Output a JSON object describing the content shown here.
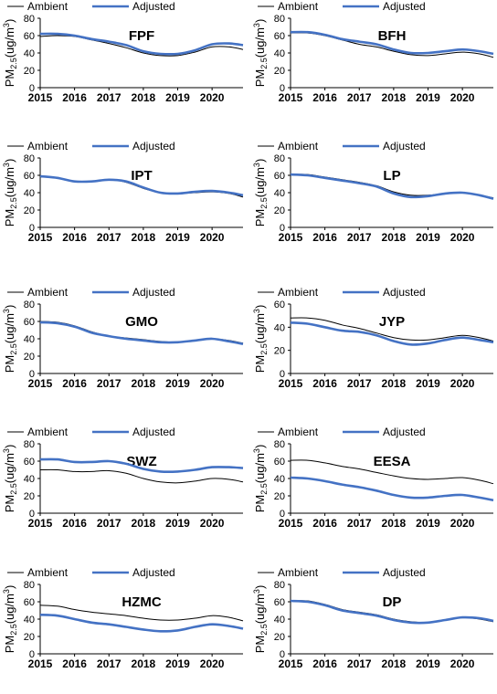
{
  "figure": {
    "legend_ambient": "Ambient",
    "legend_adjusted": "Adjusted",
    "ylabel_main": "PM",
    "ylabel_sub": "2.5",
    "ylabel_unit": "(ug/m",
    "ylabel_sup": "3",
    "ylabel_close": ")"
  },
  "colors": {
    "ambient": "#000000",
    "adjusted": "#4472c4",
    "axis": "#000000"
  },
  "chart_data": [
    {
      "type": "line",
      "title": "FPF",
      "ylim": [
        0,
        80
      ],
      "yticks": [
        0,
        20,
        40,
        60,
        80
      ],
      "xlim": [
        2015,
        2020.9
      ],
      "xticks": [
        2015,
        2016,
        2017,
        2018,
        2019,
        2020
      ],
      "x": [
        2015,
        2015.5,
        2016,
        2016.5,
        2017,
        2017.5,
        2018,
        2018.5,
        2019,
        2019.5,
        2020,
        2020.5,
        2020.9
      ],
      "series": [
        {
          "name": "Ambient",
          "values": [
            59,
            60,
            59,
            55,
            51,
            46,
            40,
            37,
            37,
            41,
            47,
            47,
            44
          ]
        },
        {
          "name": "Adjusted",
          "values": [
            62,
            62,
            60,
            56,
            53,
            49,
            42,
            39,
            39,
            43,
            50,
            51,
            49
          ]
        }
      ]
    },
    {
      "type": "line",
      "title": "BFH",
      "ylim": [
        0,
        80
      ],
      "yticks": [
        0,
        20,
        40,
        60,
        80
      ],
      "xlim": [
        2015,
        2020.9
      ],
      "xticks": [
        2015,
        2016,
        2017,
        2018,
        2019,
        2020
      ],
      "x": [
        2015,
        2015.5,
        2016,
        2016.5,
        2017,
        2017.5,
        2018,
        2018.5,
        2019,
        2019.5,
        2020,
        2020.5,
        2020.9
      ],
      "series": [
        {
          "name": "Ambient",
          "values": [
            63,
            63,
            60,
            55,
            50,
            47,
            42,
            38,
            37,
            39,
            41,
            39,
            35
          ]
        },
        {
          "name": "Adjusted",
          "values": [
            64,
            64,
            61,
            56,
            53,
            50,
            44,
            40,
            40,
            42,
            44,
            42,
            39
          ]
        }
      ]
    },
    {
      "type": "line",
      "title": "IPT",
      "ylim": [
        0,
        80
      ],
      "yticks": [
        0,
        20,
        40,
        60,
        80
      ],
      "xlim": [
        2015,
        2020.9
      ],
      "xticks": [
        2015,
        2016,
        2017,
        2018,
        2019,
        2020
      ],
      "x": [
        2015,
        2015.5,
        2016,
        2016.5,
        2017,
        2017.5,
        2018,
        2018.5,
        2019,
        2019.5,
        2020,
        2020.5,
        2020.9
      ],
      "series": [
        {
          "name": "Ambient",
          "values": [
            58,
            57,
            53,
            53,
            55,
            52,
            45,
            40,
            39,
            40,
            41,
            39,
            35
          ]
        },
        {
          "name": "Adjusted",
          "values": [
            59,
            57,
            53,
            53,
            55,
            53,
            46,
            40,
            39,
            41,
            42,
            40,
            37
          ]
        }
      ]
    },
    {
      "type": "line",
      "title": "LP",
      "ylim": [
        0,
        80
      ],
      "yticks": [
        0,
        20,
        40,
        60,
        80
      ],
      "xlim": [
        2015,
        2020.9
      ],
      "xticks": [
        2015,
        2016,
        2017,
        2018,
        2019,
        2020
      ],
      "x": [
        2015,
        2015.5,
        2016,
        2016.5,
        2017,
        2017.5,
        2018,
        2018.5,
        2019,
        2019.5,
        2020,
        2020.5,
        2020.9
      ],
      "series": [
        {
          "name": "Ambient",
          "values": [
            61,
            61,
            58,
            55,
            52,
            48,
            41,
            37,
            37,
            39,
            40,
            37,
            34
          ]
        },
        {
          "name": "Adjusted",
          "values": [
            61,
            60,
            57,
            54,
            51,
            47,
            39,
            35,
            36,
            39,
            40,
            37,
            33
          ]
        }
      ]
    },
    {
      "type": "line",
      "title": "GMO",
      "ylim": [
        0,
        80
      ],
      "yticks": [
        0,
        20,
        40,
        60,
        80
      ],
      "xlim": [
        2015,
        2020.9
      ],
      "xticks": [
        2015,
        2016,
        2017,
        2018,
        2019,
        2020
      ],
      "x": [
        2015,
        2015.5,
        2016,
        2016.5,
        2017,
        2017.5,
        2018,
        2018.5,
        2019,
        2019.5,
        2020,
        2020.5,
        2020.9
      ],
      "series": [
        {
          "name": "Ambient",
          "values": [
            60,
            59,
            55,
            48,
            43,
            41,
            39,
            37,
            36,
            38,
            40,
            38,
            35
          ]
        },
        {
          "name": "Adjusted",
          "values": [
            59,
            58,
            54,
            47,
            43,
            40,
            38,
            36,
            36,
            38,
            40,
            37,
            34
          ]
        }
      ]
    },
    {
      "type": "line",
      "title": "JYP",
      "ylim": [
        0,
        60
      ],
      "yticks": [
        0,
        20,
        40,
        60
      ],
      "xlim": [
        2015,
        2020.9
      ],
      "xticks": [
        2015,
        2016,
        2017,
        2018,
        2019,
        2020
      ],
      "x": [
        2015,
        2015.5,
        2016,
        2016.5,
        2017,
        2017.5,
        2018,
        2018.5,
        2019,
        2019.5,
        2020,
        2020.5,
        2020.9
      ],
      "series": [
        {
          "name": "Ambient",
          "values": [
            48,
            48,
            46,
            42,
            39,
            35,
            31,
            29,
            29,
            31,
            33,
            31,
            28
          ]
        },
        {
          "name": "Adjusted",
          "values": [
            44,
            43,
            40,
            37,
            36,
            33,
            28,
            25,
            26,
            29,
            31,
            29,
            27
          ]
        }
      ]
    },
    {
      "type": "line",
      "title": "SWZ",
      "ylim": [
        0,
        80
      ],
      "yticks": [
        0,
        20,
        40,
        60,
        80
      ],
      "xlim": [
        2015,
        2020.9
      ],
      "xticks": [
        2015,
        2016,
        2017,
        2018,
        2019,
        2020
      ],
      "x": [
        2015,
        2015.5,
        2016,
        2016.5,
        2017,
        2017.5,
        2018,
        2018.5,
        2019,
        2019.5,
        2020,
        2020.5,
        2020.9
      ],
      "series": [
        {
          "name": "Ambient",
          "values": [
            50,
            50,
            48,
            48,
            49,
            46,
            40,
            36,
            35,
            37,
            40,
            39,
            36
          ]
        },
        {
          "name": "Adjusted",
          "values": [
            62,
            62,
            59,
            59,
            60,
            57,
            51,
            48,
            48,
            50,
            53,
            53,
            52
          ]
        }
      ]
    },
    {
      "type": "line",
      "title": "EESA",
      "ylim": [
        0,
        80
      ],
      "yticks": [
        0,
        20,
        40,
        60,
        80
      ],
      "xlim": [
        2015,
        2020.9
      ],
      "xticks": [
        2015,
        2016,
        2017,
        2018,
        2019,
        2020
      ],
      "x": [
        2015,
        2015.5,
        2016,
        2016.5,
        2017,
        2017.5,
        2018,
        2018.5,
        2019,
        2019.5,
        2020,
        2020.5,
        2020.9
      ],
      "series": [
        {
          "name": "Ambient",
          "values": [
            61,
            61,
            58,
            54,
            51,
            47,
            43,
            40,
            39,
            40,
            41,
            38,
            34
          ]
        },
        {
          "name": "Adjusted",
          "values": [
            41,
            40,
            37,
            33,
            30,
            26,
            21,
            18,
            18,
            20,
            21,
            18,
            15
          ]
        }
      ]
    },
    {
      "type": "line",
      "title": "HZMC",
      "ylim": [
        0,
        80
      ],
      "yticks": [
        0,
        20,
        40,
        60,
        80
      ],
      "xlim": [
        2015,
        2020.9
      ],
      "xticks": [
        2015,
        2016,
        2017,
        2018,
        2019,
        2020
      ],
      "x": [
        2015,
        2015.5,
        2016,
        2016.5,
        2017,
        2017.5,
        2018,
        2018.5,
        2019,
        2019.5,
        2020,
        2020.5,
        2020.9
      ],
      "series": [
        {
          "name": "Ambient",
          "values": [
            56,
            55,
            51,
            48,
            46,
            44,
            41,
            39,
            39,
            41,
            44,
            42,
            38
          ]
        },
        {
          "name": "Adjusted",
          "values": [
            45,
            44,
            40,
            36,
            34,
            31,
            28,
            26,
            27,
            31,
            34,
            32,
            29
          ]
        }
      ]
    },
    {
      "type": "line",
      "title": "DP",
      "ylim": [
        0,
        80
      ],
      "yticks": [
        0,
        20,
        40,
        60,
        80
      ],
      "xlim": [
        2015,
        2020.9
      ],
      "xticks": [
        2015,
        2016,
        2017,
        2018,
        2019,
        2020
      ],
      "x": [
        2015,
        2015.5,
        2016,
        2016.5,
        2017,
        2017.5,
        2018,
        2018.5,
        2019,
        2019.5,
        2020,
        2020.5,
        2020.9
      ],
      "series": [
        {
          "name": "Ambient",
          "values": [
            61,
            61,
            57,
            51,
            48,
            45,
            40,
            37,
            36,
            39,
            42,
            40,
            37
          ]
        },
        {
          "name": "Adjusted",
          "values": [
            61,
            60,
            56,
            50,
            47,
            44,
            39,
            36,
            36,
            39,
            42,
            41,
            38
          ]
        }
      ]
    }
  ]
}
